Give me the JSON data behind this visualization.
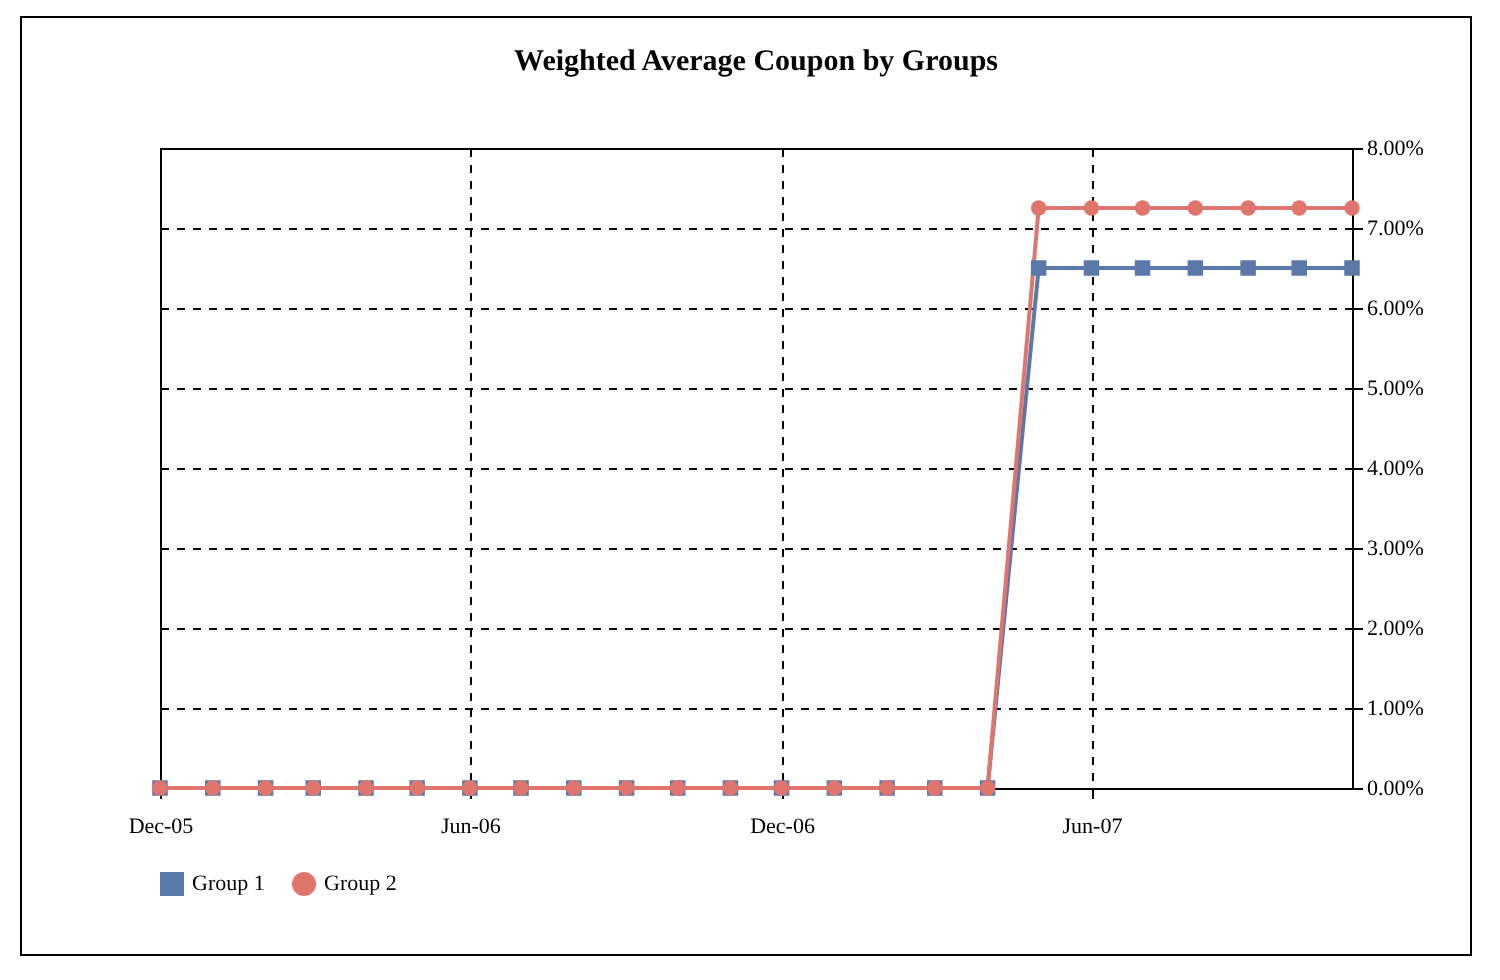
{
  "chart_data": {
    "type": "line",
    "title": "Weighted Average Coupon by Groups",
    "x": [
      "2005-12",
      "2006-01",
      "2006-02",
      "2006-03",
      "2006-04",
      "2006-05",
      "2006-06",
      "2006-07",
      "2006-08",
      "2006-09",
      "2006-10",
      "2006-11",
      "2006-12",
      "2007-01",
      "2007-02",
      "2007-03",
      "2007-04",
      "2007-05",
      "2007-06",
      "2007-07",
      "2007-08",
      "2007-09",
      "2007-10",
      "2007-11"
    ],
    "series": [
      {
        "name": "Group 1",
        "color": "#5a78aa",
        "marker": "square",
        "values": [
          0,
          0,
          0,
          0,
          0,
          0,
          0,
          0,
          0,
          0,
          0,
          0,
          0,
          0,
          0,
          0,
          0,
          6.5,
          6.5,
          6.5,
          6.5,
          6.5,
          6.5,
          6.5
        ]
      },
      {
        "name": "Group 2",
        "color": "#e0756d",
        "marker": "circle",
        "values": [
          0,
          0,
          0,
          0,
          0,
          0,
          0,
          0,
          0,
          0,
          0,
          0,
          0,
          0,
          0,
          0,
          0,
          7.25,
          7.25,
          7.25,
          7.25,
          7.25,
          7.25,
          7.25
        ]
      }
    ],
    "xlim": [
      "2005-12",
      "2007-11"
    ],
    "xticks": [
      {
        "value": "2005-12",
        "label": "Dec-05"
      },
      {
        "value": "2006-06",
        "label": "Jun-06"
      },
      {
        "value": "2006-12",
        "label": "Dec-06"
      },
      {
        "value": "2007-06",
        "label": "Jun-07"
      }
    ],
    "ylim": [
      0,
      8
    ],
    "yticks": [
      {
        "value": 0,
        "label": "0.00%"
      },
      {
        "value": 1,
        "label": "1.00%"
      },
      {
        "value": 2,
        "label": "2.00%"
      },
      {
        "value": 3,
        "label": "3.00%"
      },
      {
        "value": 4,
        "label": "4.00%"
      },
      {
        "value": 5,
        "label": "5.00%"
      },
      {
        "value": 6,
        "label": "6.00%"
      },
      {
        "value": 7,
        "label": "7.00%"
      },
      {
        "value": 8,
        "label": "8.00%"
      }
    ],
    "grid": true,
    "legend": "bottom",
    "line_style": "solid"
  }
}
